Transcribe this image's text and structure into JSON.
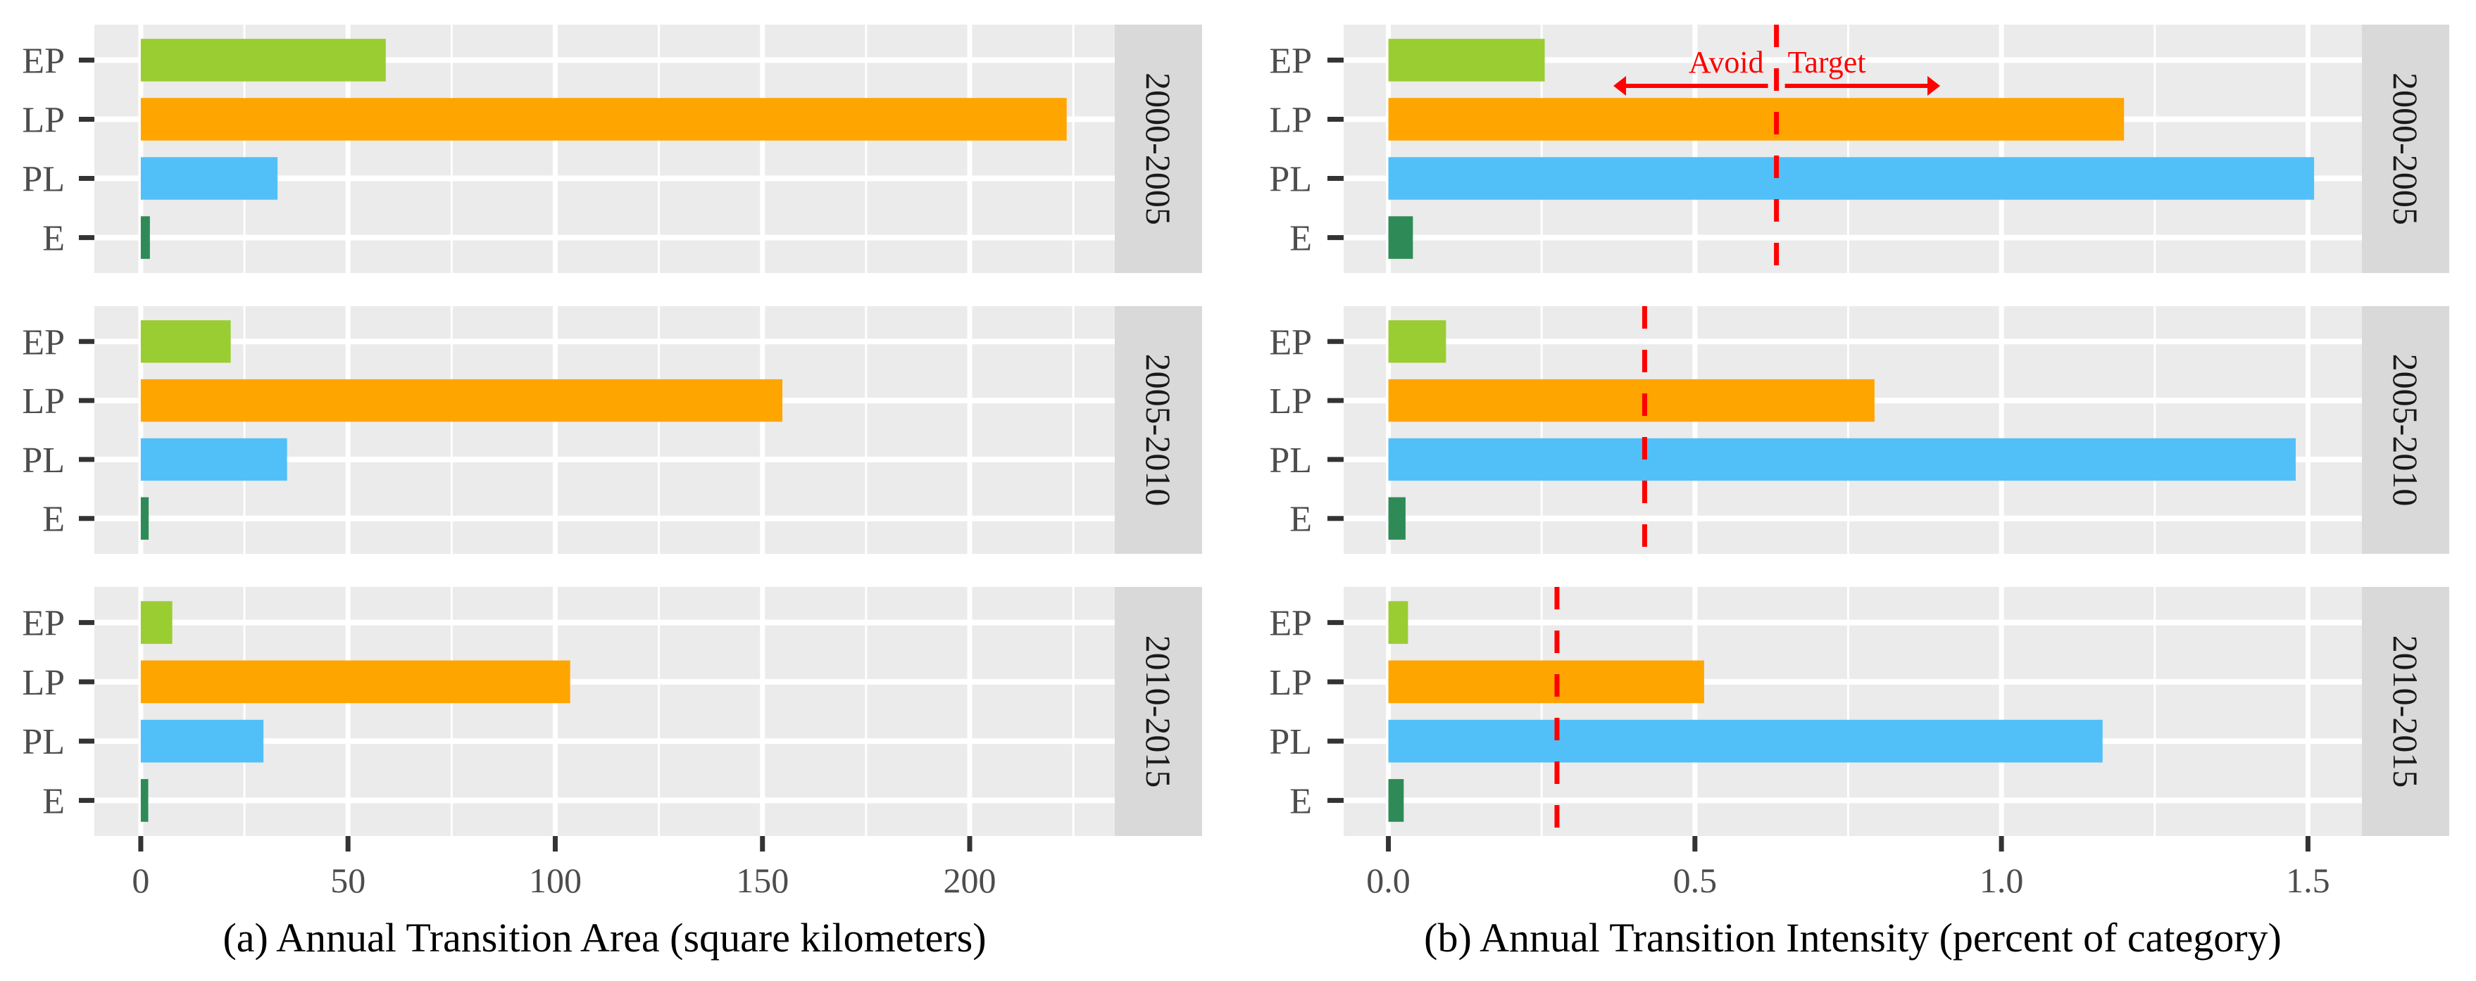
{
  "chart_data": [
    {
      "type": "bar",
      "orientation": "horizontal",
      "title": "(a) Annual Transition Area (square kilometers)",
      "xlabel": "(a) Annual Transition Area (square kilometers)",
      "ylabel": "",
      "xlim": [
        -11.2,
        235
      ],
      "xticks": [
        0,
        50,
        100,
        150,
        200
      ],
      "xtick_labels": [
        "0",
        "50",
        "100",
        "150",
        "200"
      ],
      "xminor": [
        25,
        75,
        125,
        175,
        225
      ],
      "categories": [
        "EP",
        "LP",
        "PL",
        "E"
      ],
      "facets": [
        {
          "label": "2000-2005",
          "values": [
            59.1,
            223.4,
            33.0,
            2.2
          ]
        },
        {
          "label": "2005-2010",
          "values": [
            21.7,
            154.8,
            35.3,
            1.9
          ]
        },
        {
          "label": "2010-2015",
          "values": [
            7.6,
            103.6,
            29.6,
            1.8
          ]
        }
      ],
      "grid": true
    },
    {
      "type": "bar",
      "orientation": "horizontal",
      "title": "(b) Annual Transition Intensity (percent of category)",
      "xlabel": "(b) Annual Transition Intensity (percent of category)",
      "ylabel": "",
      "xlim": [
        -0.073,
        1.588
      ],
      "xticks": [
        0.0,
        0.5,
        1.0,
        1.5
      ],
      "xtick_labels": [
        "0.0",
        "0.5",
        "1.0",
        "1.5"
      ],
      "xminor": [
        0.25,
        0.75,
        1.25
      ],
      "categories": [
        "EP",
        "LP",
        "PL",
        "E"
      ],
      "facets": [
        {
          "label": "2000-2005",
          "values": [
            0.255,
            1.2,
            1.51,
            0.04
          ],
          "uniform_intensity": 0.633
        },
        {
          "label": "2005-2010",
          "values": [
            0.094,
            0.793,
            1.48,
            0.028
          ],
          "uniform_intensity": 0.418
        },
        {
          "label": "2010-2015",
          "values": [
            0.032,
            0.515,
            1.165,
            0.025
          ],
          "uniform_intensity": 0.275
        }
      ],
      "annotations": {
        "avoid_label": "Avoid",
        "target_label": "Target",
        "avoid_arrow_to": 0.367,
        "target_arrow_to": 0.9
      },
      "grid": true
    }
  ],
  "colors": {
    "EP": "#9ACD32",
    "LP": "#FFA500",
    "PL": "#52C0F8",
    "E": "#2E8B57",
    "panel_bg": "#EBEBEB",
    "strip_bg": "#D9D9D9",
    "threshold": "#FF0000"
  }
}
